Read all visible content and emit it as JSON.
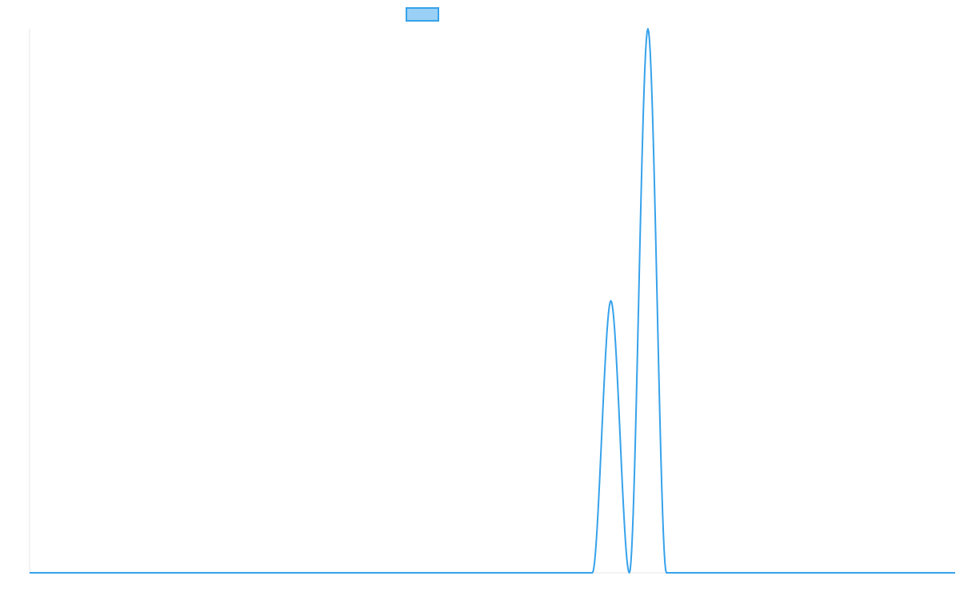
{
  "chart_data": {
    "type": "line",
    "title": "",
    "xlabel": "",
    "ylabel": "",
    "grid": false,
    "legend": {
      "placement": "top-center",
      "entries": [
        {
          "label": "",
          "color": "#36a2eb",
          "fill": "#9ad0f5"
        }
      ]
    },
    "xlim": [
      0,
      1000
    ],
    "ylim": [
      0,
      1
    ],
    "series": [
      {
        "color": "#36a2eb",
        "points": [
          {
            "x": 0,
            "y": 0
          },
          {
            "x": 608,
            "y": 0
          },
          {
            "x": 628,
            "y": 0.5
          },
          {
            "x": 648,
            "y": 0
          },
          {
            "x": 668,
            "y": 1
          },
          {
            "x": 688,
            "y": 0
          },
          {
            "x": 1000,
            "y": 0
          }
        ]
      }
    ]
  }
}
